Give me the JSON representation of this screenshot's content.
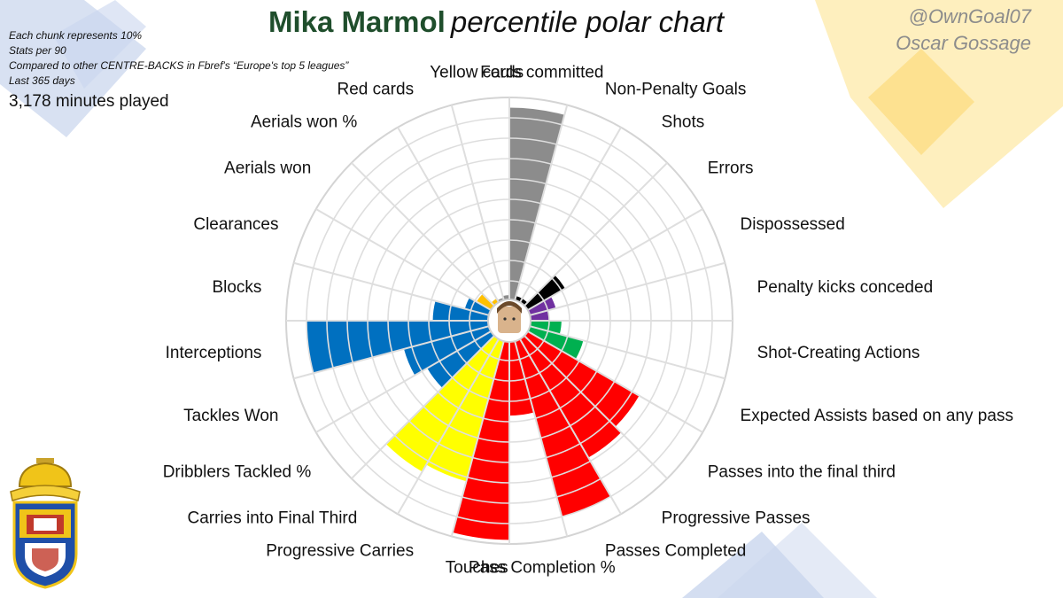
{
  "title": {
    "player": "Mika Marmol",
    "subtitle": "percentile polar chart"
  },
  "notes": [
    "Each chunk represents 10%",
    "Stats per 90",
    "Compared to other CENTRE-BACKS in Fbref's “Europe's top 5 leagues”",
    "Last 365 days"
  ],
  "minutes": "3,178 minutes played",
  "credit": {
    "handle": "@OwnGoal07",
    "author": "Oscar Gossage"
  },
  "crest_icon": "las-palmas-crest-icon",
  "colors": {
    "discipline": "#8c8c8c",
    "errors": "#000000",
    "penalties": "#7030a0",
    "creation": "#00b050",
    "passing": "#ff0000",
    "carrying": "#ffff00",
    "defending": "#0070c0",
    "aerial": "#ffc000"
  },
  "chart_data": {
    "type": "polar-bar",
    "scale": "percentile",
    "range": [
      0,
      100
    ],
    "rings": 10,
    "start": "top, clockwise from Fouls committed",
    "categories": [
      "Fouls committed",
      "Non-Penalty Goals",
      "Shots",
      "Errors",
      "Dispossessed",
      "Penalty kicks conceded",
      "Shot-Creating Actions",
      "Expected Assists based on any pass",
      "Passes into the final third",
      "Progressive Passes",
      "Passes Completed",
      "Pass Completion %",
      "Touches",
      "Progressive Carries",
      "Carries into Final Third",
      "Dribblers Tackled %",
      "Tackles Won",
      "Interceptions",
      "Blocks",
      "Clearances",
      "Aerials won",
      "Aerials won %",
      "Red cards",
      "Yellow cards"
    ],
    "values": [
      95,
      3,
      3,
      22,
      14,
      10,
      16,
      28,
      64,
      68,
      90,
      37,
      98,
      72,
      76,
      37,
      44,
      90,
      28,
      13,
      9,
      3,
      2,
      3
    ],
    "colors": [
      "#8c8c8c",
      "#000000",
      "#000000",
      "#000000",
      "#7030a0",
      "#7030a0",
      "#00b050",
      "#00b050",
      "#ff0000",
      "#ff0000",
      "#ff0000",
      "#ff0000",
      "#ff0000",
      "#ffff00",
      "#ffff00",
      "#0070c0",
      "#0070c0",
      "#0070c0",
      "#0070c0",
      "#0070c0",
      "#ffc000",
      "#ffc000",
      "#8c8c8c",
      "#8c8c8c"
    ]
  }
}
